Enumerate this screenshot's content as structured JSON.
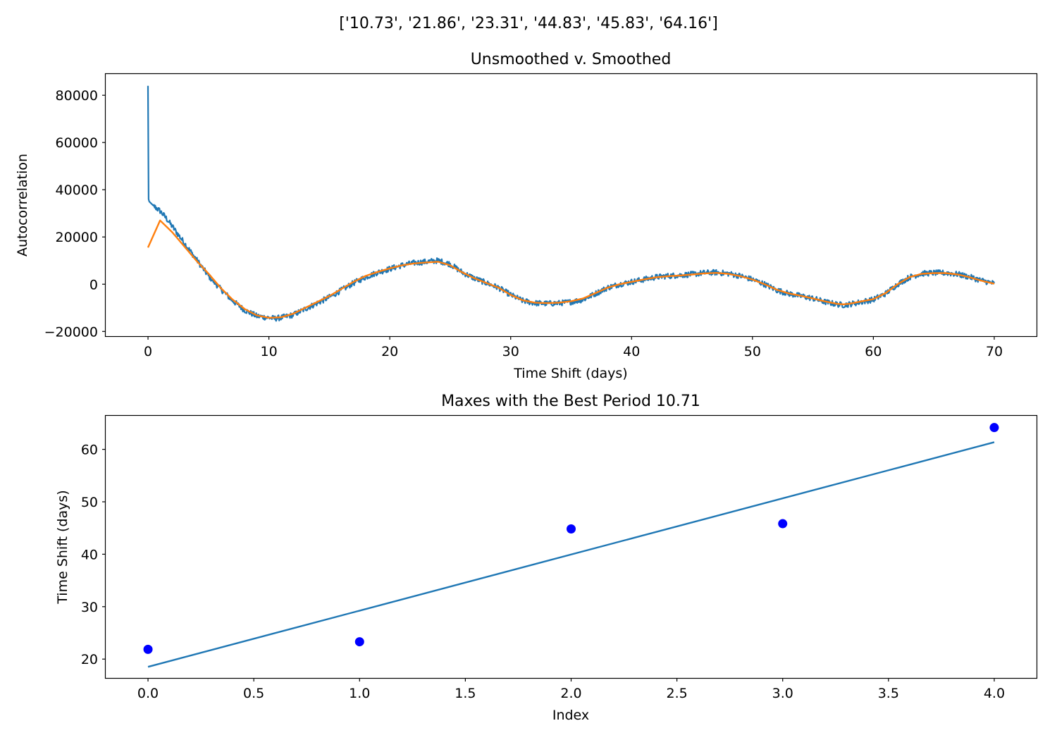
{
  "figure": {
    "suptitle": "['10.73', '21.86', '23.31', '44.83', '45.83', '64.16']"
  },
  "chart_data": [
    {
      "type": "line",
      "title": "Unsmoothed v. Smoothed",
      "xlabel": "Time Shift (days)",
      "ylabel": "Autocorrelation",
      "xlim": [
        -3.5,
        73.5
      ],
      "ylim": [
        -22000,
        89000
      ],
      "x_ticks": [
        0,
        10,
        20,
        30,
        40,
        50,
        60,
        70
      ],
      "y_ticks": [
        -20000,
        0,
        20000,
        40000,
        60000,
        80000
      ],
      "x_tick_labels": [
        "0",
        "10",
        "20",
        "30",
        "40",
        "50",
        "60",
        "70"
      ],
      "y_tick_labels": [
        "−20000",
        "0",
        "20000",
        "40000",
        "60000",
        "80000"
      ],
      "grid": false,
      "series": [
        {
          "color": "#1f77b4",
          "points": [
            [
              0,
              84000
            ],
            [
              0.05,
              36000
            ],
            [
              0.1,
              35000
            ],
            [
              0.5,
              33000
            ],
            [
              1,
              31000
            ],
            [
              1.5,
              28000
            ],
            [
              2,
              24500
            ],
            [
              2.5,
              21000
            ],
            [
              3,
              17500
            ],
            [
              3.5,
              14000
            ],
            [
              4,
              10500
            ],
            [
              4.5,
              7000
            ],
            [
              5,
              3500
            ],
            [
              6,
              -2000
            ],
            [
              7,
              -7000
            ],
            [
              8,
              -11000
            ],
            [
              9,
              -13500
            ],
            [
              10,
              -14200
            ],
            [
              10.5,
              -14500
            ],
            [
              11,
              -14200
            ],
            [
              12,
              -13000
            ],
            [
              13,
              -10500
            ],
            [
              14,
              -8000
            ],
            [
              15,
              -5500
            ],
            [
              16,
              -2500
            ],
            [
              17,
              500
            ],
            [
              18,
              3000
            ],
            [
              19,
              5000
            ],
            [
              20,
              6500
            ],
            [
              21,
              8000
            ],
            [
              22,
              9000
            ],
            [
              23,
              9500
            ],
            [
              24,
              10000
            ],
            [
              25,
              8500
            ],
            [
              26,
              5000
            ],
            [
              27,
              2500
            ],
            [
              28,
              500
            ],
            [
              29,
              -1500
            ],
            [
              30,
              -4500
            ],
            [
              31,
              -7000
            ],
            [
              32,
              -8000
            ],
            [
              33,
              -8200
            ],
            [
              34,
              -8000
            ],
            [
              35,
              -7500
            ],
            [
              36,
              -6500
            ],
            [
              37,
              -4000
            ],
            [
              38,
              -1500
            ],
            [
              39,
              0
            ],
            [
              40,
              1000
            ],
            [
              41,
              2000
            ],
            [
              42,
              3000
            ],
            [
              43,
              3500
            ],
            [
              44,
              3800
            ],
            [
              45,
              4200
            ],
            [
              46,
              4800
            ],
            [
              47,
              5000
            ],
            [
              48,
              4500
            ],
            [
              49,
              3500
            ],
            [
              50,
              2000
            ],
            [
              51,
              0
            ],
            [
              52,
              -2500
            ],
            [
              53,
              -4000
            ],
            [
              54,
              -5000
            ],
            [
              55,
              -6000
            ],
            [
              56,
              -7500
            ],
            [
              57,
              -8500
            ],
            [
              57.5,
              -8800
            ],
            [
              58,
              -8500
            ],
            [
              59,
              -7500
            ],
            [
              60,
              -6500
            ],
            [
              61,
              -4000
            ],
            [
              62,
              0
            ],
            [
              63,
              3000
            ],
            [
              64,
              4500
            ],
            [
              65,
              4800
            ],
            [
              66,
              4800
            ],
            [
              67,
              4200
            ],
            [
              68,
              3000
            ],
            [
              69,
              1500
            ],
            [
              70,
              300
            ]
          ],
          "noise": "high-frequency jitter of roughly ±1500"
        },
        {
          "color": "#ff7f0e",
          "points": [
            [
              0,
              15500
            ],
            [
              1,
              27000
            ],
            [
              2,
              22000
            ],
            [
              3,
              16000
            ],
            [
              4,
              10000
            ],
            [
              5,
              4500
            ],
            [
              6,
              -1500
            ],
            [
              7,
              -6500
            ],
            [
              8,
              -10500
            ],
            [
              9,
              -13200
            ],
            [
              10,
              -14200
            ],
            [
              11,
              -14000
            ],
            [
              12,
              -12500
            ],
            [
              13,
              -10000
            ],
            [
              14,
              -7500
            ],
            [
              15,
              -5000
            ],
            [
              16,
              -2000
            ],
            [
              17,
              1000
            ],
            [
              18,
              3500
            ],
            [
              19,
              5200
            ],
            [
              20,
              6700
            ],
            [
              21,
              8000
            ],
            [
              22,
              8800
            ],
            [
              23,
              9200
            ],
            [
              24,
              9500
            ],
            [
              25,
              8000
            ],
            [
              26,
              5000
            ],
            [
              27,
              2500
            ],
            [
              28,
              500
            ],
            [
              29,
              -1500
            ],
            [
              30,
              -4500
            ],
            [
              31,
              -6800
            ],
            [
              32,
              -7800
            ],
            [
              33,
              -8000
            ],
            [
              34,
              -7800
            ],
            [
              35,
              -7200
            ],
            [
              36,
              -6000
            ],
            [
              37,
              -3800
            ],
            [
              38,
              -1500
            ],
            [
              39,
              0
            ],
            [
              40,
              1000
            ],
            [
              41,
              2000
            ],
            [
              42,
              2900
            ],
            [
              43,
              3400
            ],
            [
              44,
              3700
            ],
            [
              45,
              4100
            ],
            [
              46,
              4600
            ],
            [
              47,
              4800
            ],
            [
              48,
              4400
            ],
            [
              49,
              3400
            ],
            [
              50,
              2000
            ],
            [
              51,
              0
            ],
            [
              52,
              -2300
            ],
            [
              53,
              -3900
            ],
            [
              54,
              -4900
            ],
            [
              55,
              -6000
            ],
            [
              56,
              -7300
            ],
            [
              57,
              -8300
            ],
            [
              57.5,
              -8500
            ],
            [
              58,
              -8300
            ],
            [
              59,
              -7300
            ],
            [
              60,
              -6300
            ],
            [
              61,
              -3800
            ],
            [
              62,
              0
            ],
            [
              63,
              3000
            ],
            [
              64,
              4400
            ],
            [
              65,
              4700
            ],
            [
              66,
              4700
            ],
            [
              67,
              4100
            ],
            [
              68,
              2900
            ],
            [
              69,
              1400
            ],
            [
              70,
              200
            ]
          ]
        }
      ]
    },
    {
      "type": "scatter",
      "title": "Maxes with the Best Period 10.71",
      "xlabel": "Index",
      "ylabel": "Time Shift (days)",
      "xlim": [
        -0.2,
        4.2
      ],
      "ylim": [
        16.4,
        66.4
      ],
      "x_ticks": [
        0.0,
        0.5,
        1.0,
        1.5,
        2.0,
        2.5,
        3.0,
        3.5,
        4.0
      ],
      "y_ticks": [
        20,
        30,
        40,
        50,
        60
      ],
      "x_tick_labels": [
        "0.0",
        "0.5",
        "1.0",
        "1.5",
        "2.0",
        "2.5",
        "3.0",
        "3.5",
        "4.0"
      ],
      "y_tick_labels": [
        "20",
        "30",
        "40",
        "50",
        "60"
      ],
      "grid": false,
      "points": {
        "color": "#0000ff",
        "x": [
          0,
          1,
          2,
          3,
          4
        ],
        "y": [
          21.86,
          23.31,
          44.83,
          45.83,
          64.16
        ]
      },
      "fit_line": {
        "color": "#1f77b4",
        "x": [
          0,
          4
        ],
        "y": [
          18.53,
          61.37
        ]
      }
    }
  ]
}
